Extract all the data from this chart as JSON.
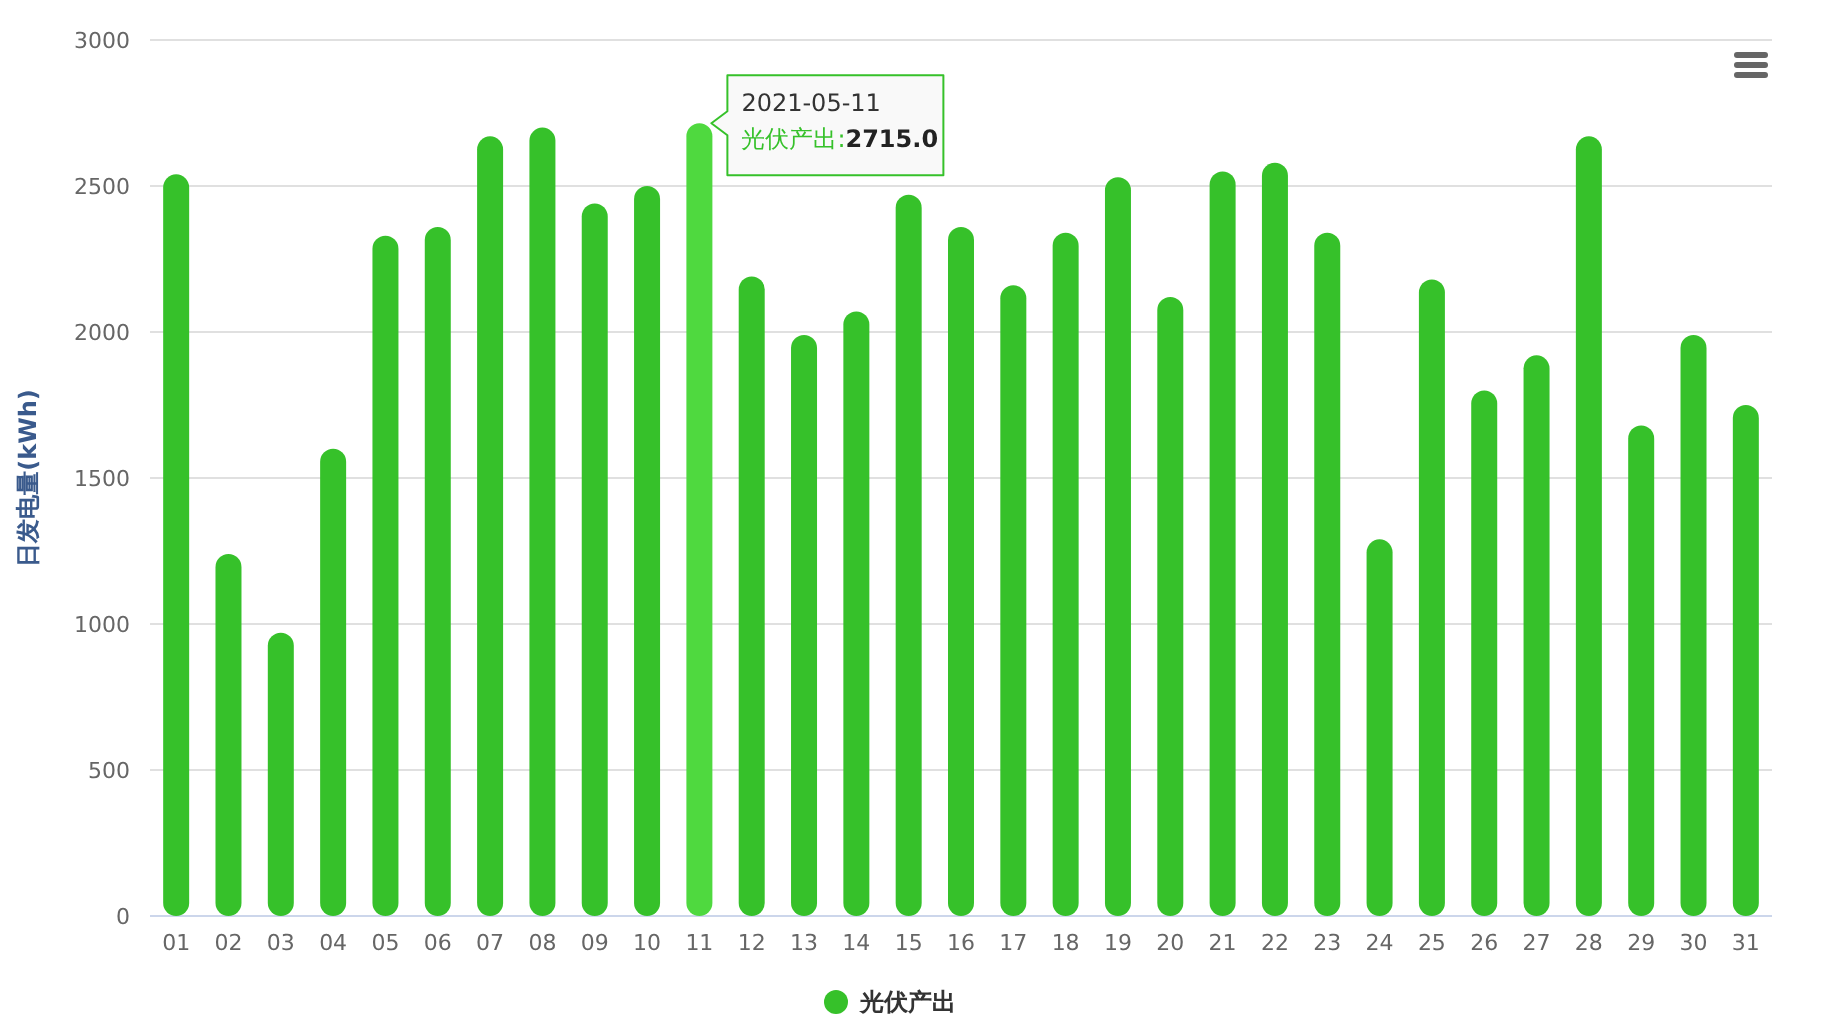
{
  "chart_data": {
    "type": "bar",
    "ylabel": "日发电量(kWh)",
    "categories": [
      "01",
      "02",
      "03",
      "04",
      "05",
      "06",
      "07",
      "08",
      "09",
      "10",
      "11",
      "12",
      "13",
      "14",
      "15",
      "16",
      "17",
      "18",
      "19",
      "20",
      "21",
      "22",
      "23",
      "24",
      "25",
      "26",
      "27",
      "28",
      "29",
      "30",
      "31"
    ],
    "series": [
      {
        "name": "光伏产出",
        "color": "#36c12a",
        "colors": [
          "#36c12a",
          "#36c12a",
          "#36c12a",
          "#36c12a",
          "#36c12a",
          "#36c12a",
          "#36c12a",
          "#36c12a",
          "#36c12a",
          "#36c12a",
          "#4fd93f",
          "#36c12a",
          "#36c12a",
          "#36c12a",
          "#36c12a",
          "#36c12a",
          "#36c12a",
          "#36c12a",
          "#36c12a",
          "#36c12a",
          "#36c12a",
          "#36c12a",
          "#36c12a",
          "#36c12a",
          "#36c12a",
          "#36c12a",
          "#36c12a",
          "#36c12a",
          "#36c12a",
          "#36c12a",
          "#36c12a"
        ],
        "values": [
          2540,
          1240,
          970,
          1600,
          2330,
          2360,
          2670,
          2700,
          2440,
          2500,
          2715,
          2190,
          1990,
          2070,
          2470,
          2360,
          2160,
          2340,
          2530,
          2120,
          2550,
          2580,
          2340,
          1290,
          2180,
          1800,
          1920,
          2670,
          1680,
          1990,
          1750
        ]
      }
    ],
    "ylim": [
      0,
      3000
    ],
    "yticks": [
      0,
      500,
      1000,
      1500,
      2000,
      2500,
      3000
    ],
    "grid": "y",
    "legend": "bottom",
    "marker": "circle",
    "annotations": [
      {
        "text": "2021-05-11",
        "x": "11",
        "y": 2715
      },
      {
        "text": "光伏产出:**2715.0**",
        "x": "11",
        "y": 2715
      }
    ]
  }
}
